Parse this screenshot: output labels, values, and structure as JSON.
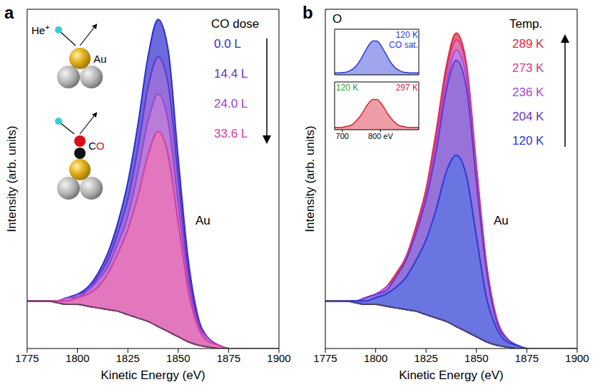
{
  "chart_data": [
    {
      "type": "area",
      "panel_label": "a",
      "x_label": "Kinetic Energy (eV)",
      "y_label": "Intensity (arb. units)",
      "xlim": [
        1775,
        1900
      ],
      "xticks": [
        1775,
        1800,
        1825,
        1850,
        1875,
        1900
      ],
      "ylim": [
        0,
        1
      ],
      "tick_labels": "x",
      "legend": "top right",
      "legend_title": "CO dose",
      "annotations": [
        "Au"
      ],
      "schematic": {
        "ion": "He+",
        "atom": "Au",
        "molecule": "CO"
      },
      "x": [
        1775,
        1780,
        1785,
        1790,
        1795,
        1800,
        1805,
        1810,
        1815,
        1820,
        1825,
        1830,
        1835,
        1840,
        1845,
        1850,
        1855,
        1860,
        1865,
        1870,
        1875,
        1880,
        1890,
        1900
      ],
      "background": {
        "color": "#4d4d4d",
        "values": [
          0.14,
          0.14,
          0.14,
          0.135,
          0.13,
          0.13,
          0.125,
          0.12,
          0.115,
          0.11,
          0.1,
          0.09,
          0.08,
          0.065,
          0.05,
          0.035,
          0.02,
          0.01,
          0.005,
          0,
          0,
          0,
          0,
          0
        ]
      },
      "series": [
        {
          "name": "0.0 L",
          "color": "#2c2ccc",
          "values": [
            0.14,
            0.14,
            0.14,
            0.14,
            0.15,
            0.16,
            0.18,
            0.22,
            0.28,
            0.37,
            0.49,
            0.66,
            0.86,
            0.97,
            0.88,
            0.56,
            0.26,
            0.09,
            0.03,
            0.01,
            0,
            0,
            0,
            0
          ]
        },
        {
          "name": "14.4 L",
          "color": "#6633cc",
          "values": [
            0.14,
            0.14,
            0.14,
            0.14,
            0.15,
            0.16,
            0.17,
            0.21,
            0.26,
            0.34,
            0.44,
            0.59,
            0.77,
            0.86,
            0.78,
            0.5,
            0.23,
            0.08,
            0.03,
            0.01,
            0,
            0,
            0,
            0
          ]
        },
        {
          "name": "24.0 L",
          "color": "#9b44cc",
          "values": [
            0.14,
            0.14,
            0.14,
            0.14,
            0.15,
            0.15,
            0.17,
            0.2,
            0.24,
            0.31,
            0.39,
            0.52,
            0.67,
            0.75,
            0.67,
            0.43,
            0.2,
            0.07,
            0.03,
            0.01,
            0,
            0,
            0,
            0
          ]
        },
        {
          "name": "33.6 L",
          "color": "#d63ca0",
          "values": [
            0.14,
            0.14,
            0.14,
            0.14,
            0.14,
            0.15,
            0.16,
            0.18,
            0.22,
            0.28,
            0.35,
            0.45,
            0.57,
            0.64,
            0.57,
            0.37,
            0.17,
            0.06,
            0.02,
            0.01,
            0,
            0,
            0,
            0
          ]
        }
      ]
    },
    {
      "type": "area",
      "panel_label": "b",
      "x_label": "Kinetic Energy (eV)",
      "y_label": "Intensity (arb. units)",
      "xlim": [
        1775,
        1900
      ],
      "xticks": [
        1775,
        1800,
        1825,
        1850,
        1875,
        1900
      ],
      "ylim": [
        0,
        1
      ],
      "tick_labels": "x",
      "legend": "top right",
      "legend_title": "Temp.",
      "annotations": [
        "Au"
      ],
      "x": [
        1775,
        1780,
        1785,
        1790,
        1795,
        1800,
        1805,
        1810,
        1815,
        1820,
        1825,
        1830,
        1835,
        1840,
        1845,
        1850,
        1855,
        1860,
        1865,
        1870,
        1875,
        1880,
        1890,
        1900
      ],
      "background": {
        "color": "#4d4d4d",
        "values": [
          0.14,
          0.14,
          0.14,
          0.135,
          0.13,
          0.13,
          0.125,
          0.12,
          0.115,
          0.11,
          0.1,
          0.09,
          0.08,
          0.065,
          0.05,
          0.035,
          0.02,
          0.01,
          0.005,
          0,
          0,
          0,
          0,
          0
        ]
      },
      "series": [
        {
          "name": "289 K",
          "color": "#e0283c",
          "values": [
            0.14,
            0.14,
            0.14,
            0.14,
            0.15,
            0.16,
            0.18,
            0.22,
            0.27,
            0.36,
            0.47,
            0.64,
            0.83,
            0.93,
            0.84,
            0.54,
            0.25,
            0.09,
            0.03,
            0.01,
            0,
            0,
            0,
            0
          ]
        },
        {
          "name": "273 K",
          "color": "#d23c8c",
          "values": [
            0.14,
            0.14,
            0.14,
            0.14,
            0.15,
            0.16,
            0.18,
            0.21,
            0.27,
            0.35,
            0.46,
            0.62,
            0.81,
            0.91,
            0.83,
            0.53,
            0.24,
            0.09,
            0.03,
            0.01,
            0,
            0,
            0,
            0
          ]
        },
        {
          "name": "236 K",
          "color": "#a64ad6",
          "values": [
            0.14,
            0.14,
            0.14,
            0.14,
            0.15,
            0.16,
            0.18,
            0.21,
            0.26,
            0.34,
            0.45,
            0.6,
            0.78,
            0.88,
            0.8,
            0.51,
            0.24,
            0.08,
            0.03,
            0.01,
            0,
            0,
            0,
            0
          ]
        },
        {
          "name": "204 K",
          "color": "#6a36c8",
          "values": [
            0.14,
            0.14,
            0.14,
            0.14,
            0.15,
            0.16,
            0.17,
            0.21,
            0.26,
            0.34,
            0.44,
            0.58,
            0.76,
            0.85,
            0.77,
            0.49,
            0.23,
            0.08,
            0.03,
            0.01,
            0,
            0,
            0,
            0
          ]
        },
        {
          "name": "120 K",
          "color": "#2a3ad6",
          "values": [
            0.14,
            0.14,
            0.14,
            0.14,
            0.14,
            0.15,
            0.16,
            0.18,
            0.21,
            0.26,
            0.32,
            0.41,
            0.52,
            0.57,
            0.51,
            0.33,
            0.15,
            0.06,
            0.02,
            0.01,
            0,
            0,
            0,
            0
          ]
        }
      ],
      "inset": {
        "title": "O",
        "charts": [
          {
            "type": "area",
            "xlim": [
              680,
              900
            ],
            "ylim": [
              0,
              1.2
            ],
            "tick_labels": false,
            "x": [
              680,
              690,
              700,
              710,
              720,
              730,
              740,
              750,
              760,
              770,
              780,
              790,
              800,
              810,
              820,
              830,
              840,
              850,
              860,
              870,
              880,
              890,
              900
            ],
            "series": [
              {
                "name": "120 K CO sat.",
                "color": "#2a3ad6",
                "values": [
                  0.05,
                  0.05,
                  0.06,
                  0.07,
                  0.11,
                  0.17,
                  0.28,
                  0.44,
                  0.62,
                  0.79,
                  0.89,
                  0.89,
                  0.79,
                  0.62,
                  0.44,
                  0.28,
                  0.17,
                  0.11,
                  0.07,
                  0.06,
                  0.05,
                  0.05,
                  0.05
                ]
              }
            ]
          },
          {
            "type": "area",
            "xlim": [
              680,
              900
            ],
            "xticks": [
              700,
              {
                "value": 800,
                "label": "800 eV"
              }
            ],
            "ylim": [
              0,
              0.6
            ],
            "tick_labels": "x",
            "x": [
              680,
              690,
              700,
              710,
              720,
              730,
              740,
              750,
              760,
              770,
              780,
              790,
              800,
              810,
              820,
              830,
              840,
              850,
              860,
              870,
              880,
              890,
              900
            ],
            "series": [
              {
                "name": "120 K",
                "color": "#2e9e2e",
                "values": [
                  0.03,
                  0.03,
                  0.03,
                  0.04,
                  0.05,
                  0.07,
                  0.11,
                  0.16,
                  0.22,
                  0.27,
                  0.31,
                  0.31,
                  0.27,
                  0.22,
                  0.16,
                  0.11,
                  0.07,
                  0.05,
                  0.04,
                  0.03,
                  0.03,
                  0.03,
                  0.03
                ]
              },
              {
                "name": "297 K",
                "color": "#d9253a",
                "values": [
                  0.03,
                  0.03,
                  0.03,
                  0.04,
                  0.05,
                  0.08,
                  0.13,
                  0.19,
                  0.27,
                  0.34,
                  0.38,
                  0.38,
                  0.34,
                  0.27,
                  0.19,
                  0.13,
                  0.08,
                  0.05,
                  0.04,
                  0.03,
                  0.03,
                  0.03,
                  0.03
                ]
              }
            ]
          }
        ]
      }
    }
  ]
}
